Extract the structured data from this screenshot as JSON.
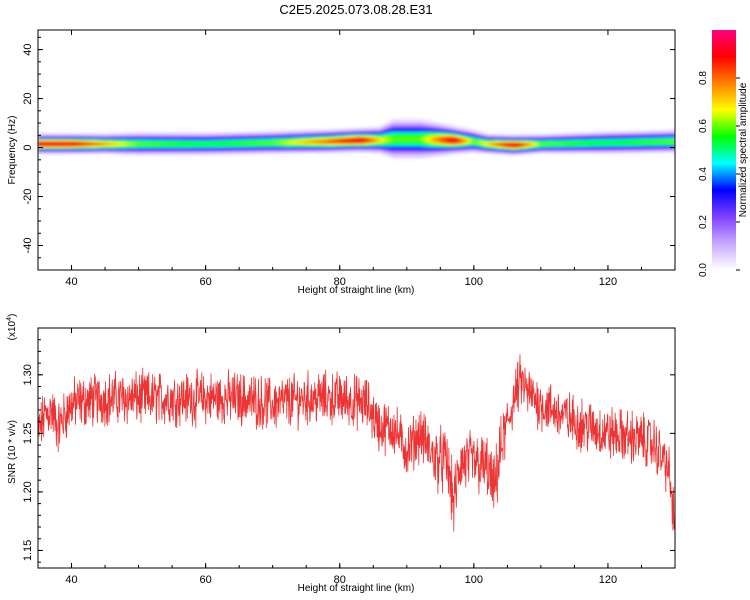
{
  "title": "C2E5.2025.073.08.28.E31",
  "chart_data": [
    {
      "type": "heatmap",
      "xlabel": "Height of straight line (km)",
      "ylabel": "Frequency (Hz)",
      "xlim": [
        35,
        130
      ],
      "ylim": [
        -50,
        48
      ],
      "xticks": [
        40,
        60,
        80,
        100,
        120
      ],
      "yticks": [
        -40,
        -20,
        0,
        20,
        40
      ],
      "colorbar": {
        "label": "Normalized spectral amplitude",
        "range": [
          0,
          1
        ],
        "ticks": [
          "0.0",
          "0.2",
          "0.4",
          "0.6",
          "0.8"
        ],
        "colors": [
          "#ffffff",
          "#c8a8ff",
          "#8040ff",
          "#0000ff",
          "#00ffff",
          "#00ff00",
          "#ffff00",
          "#ff8000",
          "#ff0000",
          "#ff0080"
        ]
      },
      "band": [
        {
          "x": 35,
          "center": 1.5,
          "halfwidth": 3,
          "peak": 0.95
        },
        {
          "x": 40,
          "center": 1.5,
          "halfwidth": 3,
          "peak": 0.92
        },
        {
          "x": 45,
          "center": 1.5,
          "halfwidth": 3,
          "peak": 0.75
        },
        {
          "x": 50,
          "center": 1.5,
          "halfwidth": 3.5,
          "peak": 0.6
        },
        {
          "x": 60,
          "center": 1.5,
          "halfwidth": 3.5,
          "peak": 0.55
        },
        {
          "x": 70,
          "center": 2,
          "halfwidth": 3.5,
          "peak": 0.6
        },
        {
          "x": 78,
          "center": 2.5,
          "halfwidth": 3.5,
          "peak": 0.8
        },
        {
          "x": 83,
          "center": 3,
          "halfwidth": 3.5,
          "peak": 0.95
        },
        {
          "x": 86,
          "center": 3,
          "halfwidth": 4,
          "peak": 0.7
        },
        {
          "x": 88,
          "center": 3.5,
          "halfwidth": 6,
          "peak": 0.6
        },
        {
          "x": 92,
          "center": 3.5,
          "halfwidth": 6,
          "peak": 0.6
        },
        {
          "x": 97,
          "center": 3,
          "halfwidth": 4,
          "peak": 0.95
        },
        {
          "x": 100,
          "center": 2.5,
          "halfwidth": 3.5,
          "peak": 0.6
        },
        {
          "x": 102,
          "center": 1.5,
          "halfwidth": 3,
          "peak": 0.7
        },
        {
          "x": 106,
          "center": 1,
          "halfwidth": 3,
          "peak": 0.95
        },
        {
          "x": 110,
          "center": 1.5,
          "halfwidth": 3,
          "peak": 0.6
        },
        {
          "x": 120,
          "center": 2,
          "halfwidth": 3.5,
          "peak": 0.55
        },
        {
          "x": 130,
          "center": 2.5,
          "halfwidth": 3.5,
          "peak": 0.6
        }
      ]
    },
    {
      "type": "line",
      "xlabel": "Height of straight line (km)",
      "ylabel": "SNR (10 * v/v)",
      "y_multiplier": "(x10",
      "y_multiplier_exp": "4",
      "y_multiplier_close": ")",
      "xlim": [
        35,
        130
      ],
      "ylim": [
        1.135,
        1.34
      ],
      "xticks": [
        40,
        60,
        80,
        100,
        120
      ],
      "yticks": [
        "1.15",
        "1.20",
        "1.25",
        "1.30"
      ],
      "color": "#ee3333",
      "x": [
        35,
        36,
        37,
        38,
        40,
        45,
        50,
        55,
        60,
        65,
        70,
        75,
        80,
        84,
        86,
        88,
        90,
        92,
        94,
        96,
        97,
        98,
        100,
        102,
        103,
        104,
        106,
        107,
        108,
        110,
        115,
        120,
        125,
        127,
        129,
        130
      ],
      "y": [
        1.25,
        1.265,
        1.27,
        1.255,
        1.275,
        1.28,
        1.28,
        1.28,
        1.28,
        1.28,
        1.275,
        1.28,
        1.28,
        1.275,
        1.255,
        1.255,
        1.235,
        1.25,
        1.23,
        1.225,
        1.19,
        1.225,
        1.225,
        1.22,
        1.2,
        1.235,
        1.28,
        1.295,
        1.285,
        1.275,
        1.26,
        1.25,
        1.245,
        1.24,
        1.22,
        1.17
      ]
    }
  ]
}
